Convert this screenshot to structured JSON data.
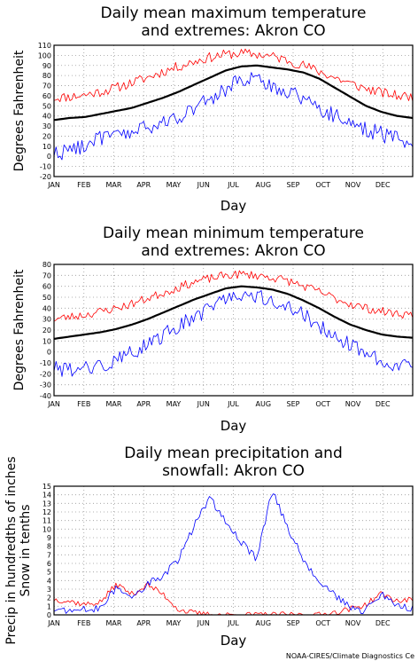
{
  "credit": "NOAA-CIRES/Climate Diagnostics Ce",
  "chart_data": [
    {
      "type": "line",
      "title_lines": [
        "Daily mean maximum temperature",
        "and extremes: Akron CO"
      ],
      "xlabel": "Day",
      "ylabel": "Degrees Fahrenheit",
      "months": [
        "JAN",
        "FEB",
        "MAR",
        "APR",
        "MAY",
        "JUN",
        "JUL",
        "AUG",
        "SEP",
        "OCT",
        "NOV",
        "DEC"
      ],
      "ylim": [
        -20,
        110
      ],
      "yticks": [
        -20,
        -10,
        0,
        10,
        20,
        30,
        40,
        50,
        60,
        70,
        80,
        90,
        100,
        110
      ],
      "grid": true,
      "series": [
        {
          "color": "#ff0000",
          "width": 0.8,
          "values": [
            58,
            59,
            61,
            64,
            68,
            73,
            78,
            84,
            89,
            94,
            98,
            101,
            102,
            101,
            99,
            95,
            90,
            84,
            78,
            72,
            67,
            63,
            60,
            59
          ]
        },
        {
          "color": "#000000",
          "width": 2.2,
          "values": [
            36,
            38,
            39,
            42,
            45,
            48,
            53,
            58,
            64,
            71,
            78,
            85,
            89,
            90,
            88,
            86,
            83,
            77,
            68,
            59,
            50,
            44,
            40,
            38
          ]
        },
        {
          "color": "#0000ff",
          "width": 0.8,
          "values": [
            3,
            6,
            12,
            18,
            20,
            24,
            28,
            33,
            40,
            48,
            56,
            66,
            77,
            75,
            70,
            64,
            58,
            48,
            40,
            34,
            27,
            22,
            18,
            10
          ]
        }
      ]
    },
    {
      "type": "line",
      "title_lines": [
        "Daily mean minimum temperature",
        "and extremes: Akron CO"
      ],
      "xlabel": "Day",
      "ylabel": "Degrees Fahrenheit",
      "months": [
        "JAN",
        "FEB",
        "MAR",
        "APR",
        "MAY",
        "JUN",
        "JUL",
        "AUG",
        "SEP",
        "OCT",
        "NOV",
        "DEC"
      ],
      "ylim": [
        -40,
        80
      ],
      "yticks": [
        -40,
        -30,
        -20,
        -10,
        0,
        10,
        20,
        30,
        40,
        50,
        60,
        70,
        80
      ],
      "grid": true,
      "series": [
        {
          "color": "#ff0000",
          "width": 0.8,
          "values": [
            30,
            32,
            34,
            37,
            40,
            44,
            49,
            54,
            59,
            64,
            67,
            70,
            71,
            70,
            68,
            65,
            60,
            55,
            49,
            44,
            40,
            37,
            35,
            34
          ]
        },
        {
          "color": "#000000",
          "width": 2.2,
          "values": [
            12,
            14,
            16,
            18,
            21,
            25,
            30,
            36,
            42,
            48,
            53,
            58,
            60,
            59,
            57,
            53,
            47,
            40,
            32,
            25,
            20,
            16,
            14,
            13
          ]
        },
        {
          "color": "#0000ff",
          "width": 0.8,
          "values": [
            -15,
            -16,
            -15,
            -12,
            -8,
            0,
            6,
            15,
            24,
            32,
            40,
            48,
            53,
            52,
            48,
            42,
            34,
            24,
            15,
            6,
            -2,
            -8,
            -12,
            -15
          ]
        }
      ]
    },
    {
      "type": "line",
      "title_lines": [
        "Daily mean precipitation and",
        "snowfall: Akron CO"
      ],
      "xlabel": "Day",
      "ylabel_lines": [
        "Precip in hundredths of inches",
        "Snow in tenths"
      ],
      "months": [
        "JAN",
        "FEB",
        "MAR",
        "APR",
        "MAY",
        "JUN",
        "JUL",
        "AUG",
        "SEP",
        "OCT",
        "NOV",
        "DEC"
      ],
      "ylim": [
        0,
        15
      ],
      "yticks": [
        0,
        1,
        2,
        3,
        4,
        5,
        6,
        7,
        8,
        9,
        10,
        11,
        12,
        13,
        14,
        15
      ],
      "grid": true,
      "series": [
        {
          "color": "#ff0000",
          "width": 0.8,
          "values": [
            1.8,
            1.6,
            1.2,
            1.5,
            3.6,
            2.4,
            3.5,
            2.4,
            0.6,
            0.2,
            0,
            0,
            0,
            0,
            0,
            0,
            0,
            0,
            0.3,
            0.7,
            1.2,
            2.5,
            1.6,
            1.8
          ]
        },
        {
          "color": "#0000ff",
          "width": 0.8,
          "values": [
            0.6,
            0.5,
            0.6,
            0.7,
            3.2,
            2.2,
            3.6,
            4.5,
            6.5,
            10.5,
            13.5,
            11.0,
            8.5,
            6.5,
            14.5,
            10.0,
            6.5,
            4.0,
            2.2,
            0.8,
            0.5,
            2.5,
            1.0,
            0.7
          ]
        }
      ]
    }
  ]
}
